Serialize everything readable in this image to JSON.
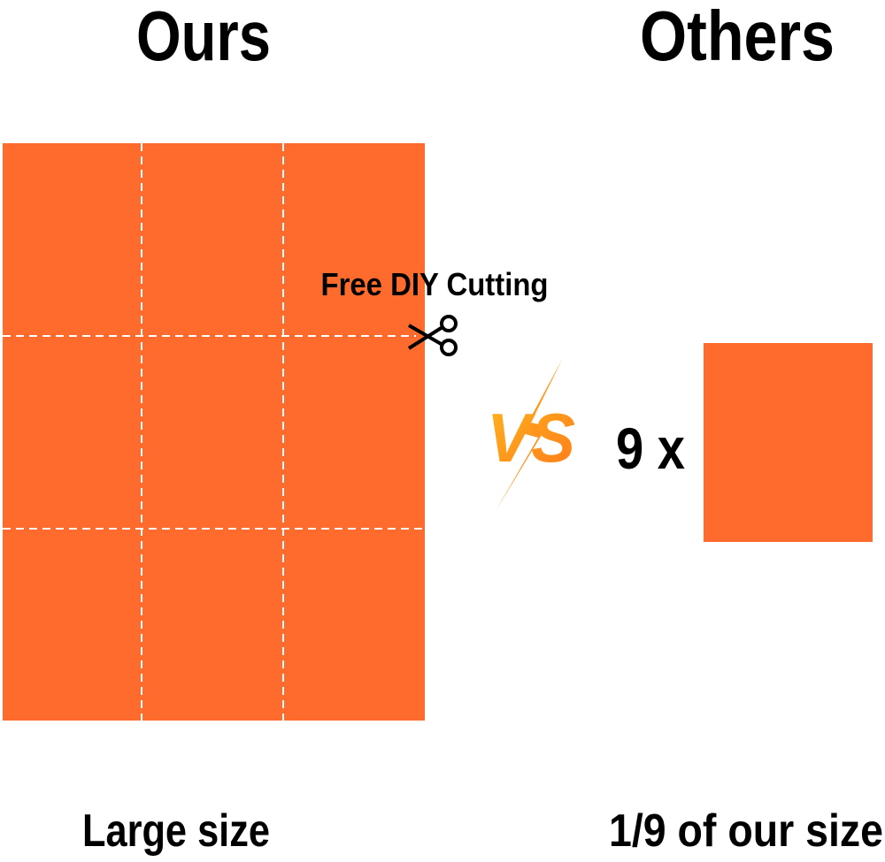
{
  "left": {
    "title": "Ours",
    "annotation": "Free DIY Cutting",
    "caption": "Large size"
  },
  "center": {
    "label": "VS"
  },
  "right": {
    "title": "Others",
    "multiplier": "9 x",
    "caption": "1/9 of our size"
  }
}
